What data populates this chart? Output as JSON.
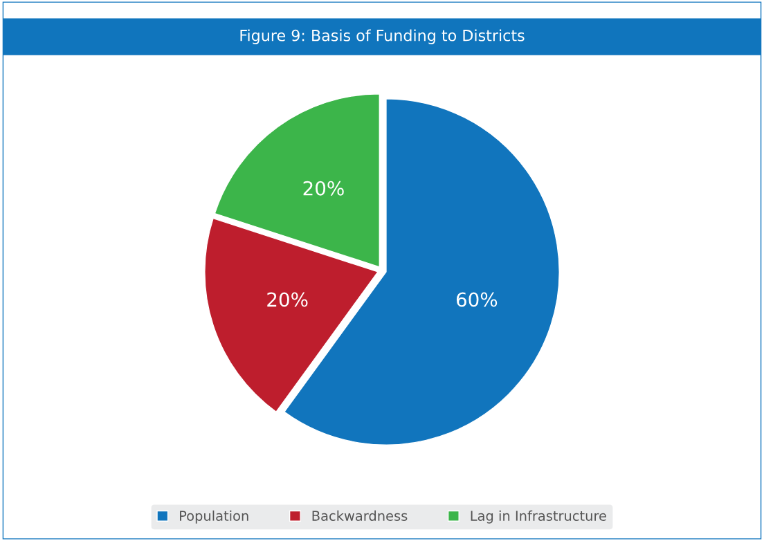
{
  "chart_data": {
    "type": "pie",
    "title": "Figure 9: Basis of Funding to Districts",
    "categories": [
      "Population",
      "Backwardness",
      "Lag in Infrastructure"
    ],
    "values": [
      60,
      20,
      20
    ],
    "colors": [
      "#1175bd",
      "#be1e2d",
      "#3cb54a"
    ],
    "value_labels": [
      "60%",
      "20%",
      "20%"
    ],
    "legend": "bottom"
  }
}
